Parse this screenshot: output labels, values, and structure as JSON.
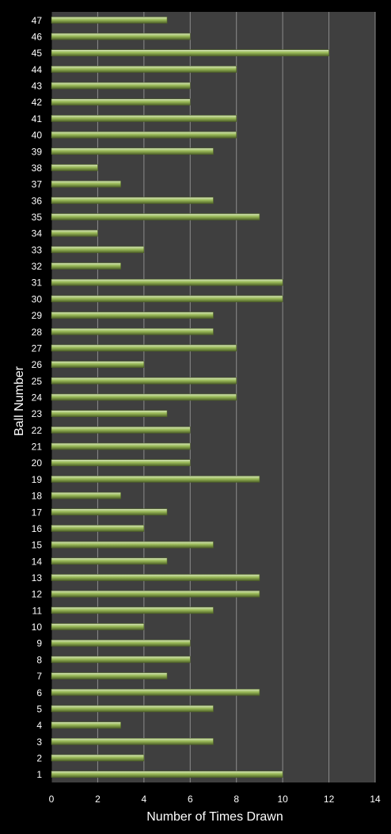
{
  "chart_data": {
    "type": "bar",
    "orientation": "horizontal",
    "title": "",
    "xlabel": "Number of Times Drawn",
    "ylabel": "Ball Number",
    "xlim": [
      0,
      14
    ],
    "xticks": [
      0,
      2,
      4,
      6,
      8,
      10,
      12,
      14
    ],
    "grid": "vertical",
    "legend": "none",
    "categories": [
      "1",
      "2",
      "3",
      "4",
      "5",
      "6",
      "7",
      "8",
      "9",
      "10",
      "11",
      "12",
      "13",
      "14",
      "15",
      "16",
      "17",
      "18",
      "19",
      "20",
      "21",
      "22",
      "23",
      "24",
      "25",
      "26",
      "27",
      "28",
      "29",
      "30",
      "31",
      "32",
      "33",
      "34",
      "35",
      "36",
      "37",
      "38",
      "39",
      "40",
      "41",
      "42",
      "43",
      "44",
      "45",
      "46",
      "47"
    ],
    "values": [
      10,
      4,
      7,
      3,
      7,
      9,
      5,
      6,
      6,
      4,
      7,
      9,
      9,
      5,
      7,
      4,
      5,
      3,
      9,
      6,
      6,
      6,
      5,
      8,
      8,
      4,
      8,
      7,
      7,
      10,
      10,
      3,
      4,
      2,
      9,
      7,
      3,
      2,
      7,
      8,
      8,
      6,
      6,
      8,
      12,
      6,
      5
    ],
    "colors": {
      "background": "#000000",
      "plot_area": "#3f3f3f",
      "gridline": "#8c8c8c",
      "bar_fill": "#9bbb59",
      "bar_highlight": "#d7e4bd",
      "bar_edge": "#4f6228",
      "text": "#ffffff"
    }
  }
}
